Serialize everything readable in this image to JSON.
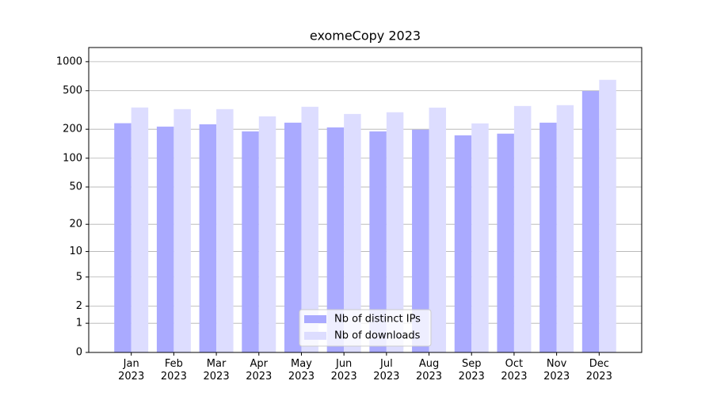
{
  "chart_data": {
    "type": "bar",
    "title": "exomeCopy 2023",
    "categories": [
      "Jan 2023",
      "Feb 2023",
      "Mar 2023",
      "Apr 2023",
      "May 2023",
      "Jun 2023",
      "Jul 2023",
      "Aug 2023",
      "Sep 2023",
      "Oct 2023",
      "Nov 2023",
      "Dec 2023"
    ],
    "series": [
      {
        "name": "Nb of distinct IPs",
        "color": "#aaaaff",
        "values": [
          231,
          213,
          225,
          190,
          234,
          209,
          190,
          198,
          173,
          180,
          234,
          498
        ]
      },
      {
        "name": "Nb of downloads",
        "color": "#ddddff",
        "values": [
          336,
          323,
          323,
          272,
          342,
          288,
          300,
          335,
          230,
          348,
          355,
          649
        ]
      }
    ],
    "yscale": "log1p",
    "ylim": [
      0,
      1400
    ],
    "yticks": [
      0,
      1,
      2,
      5,
      10,
      20,
      50,
      100,
      200,
      500,
      1000
    ],
    "grid": true,
    "legend": "lower center"
  }
}
